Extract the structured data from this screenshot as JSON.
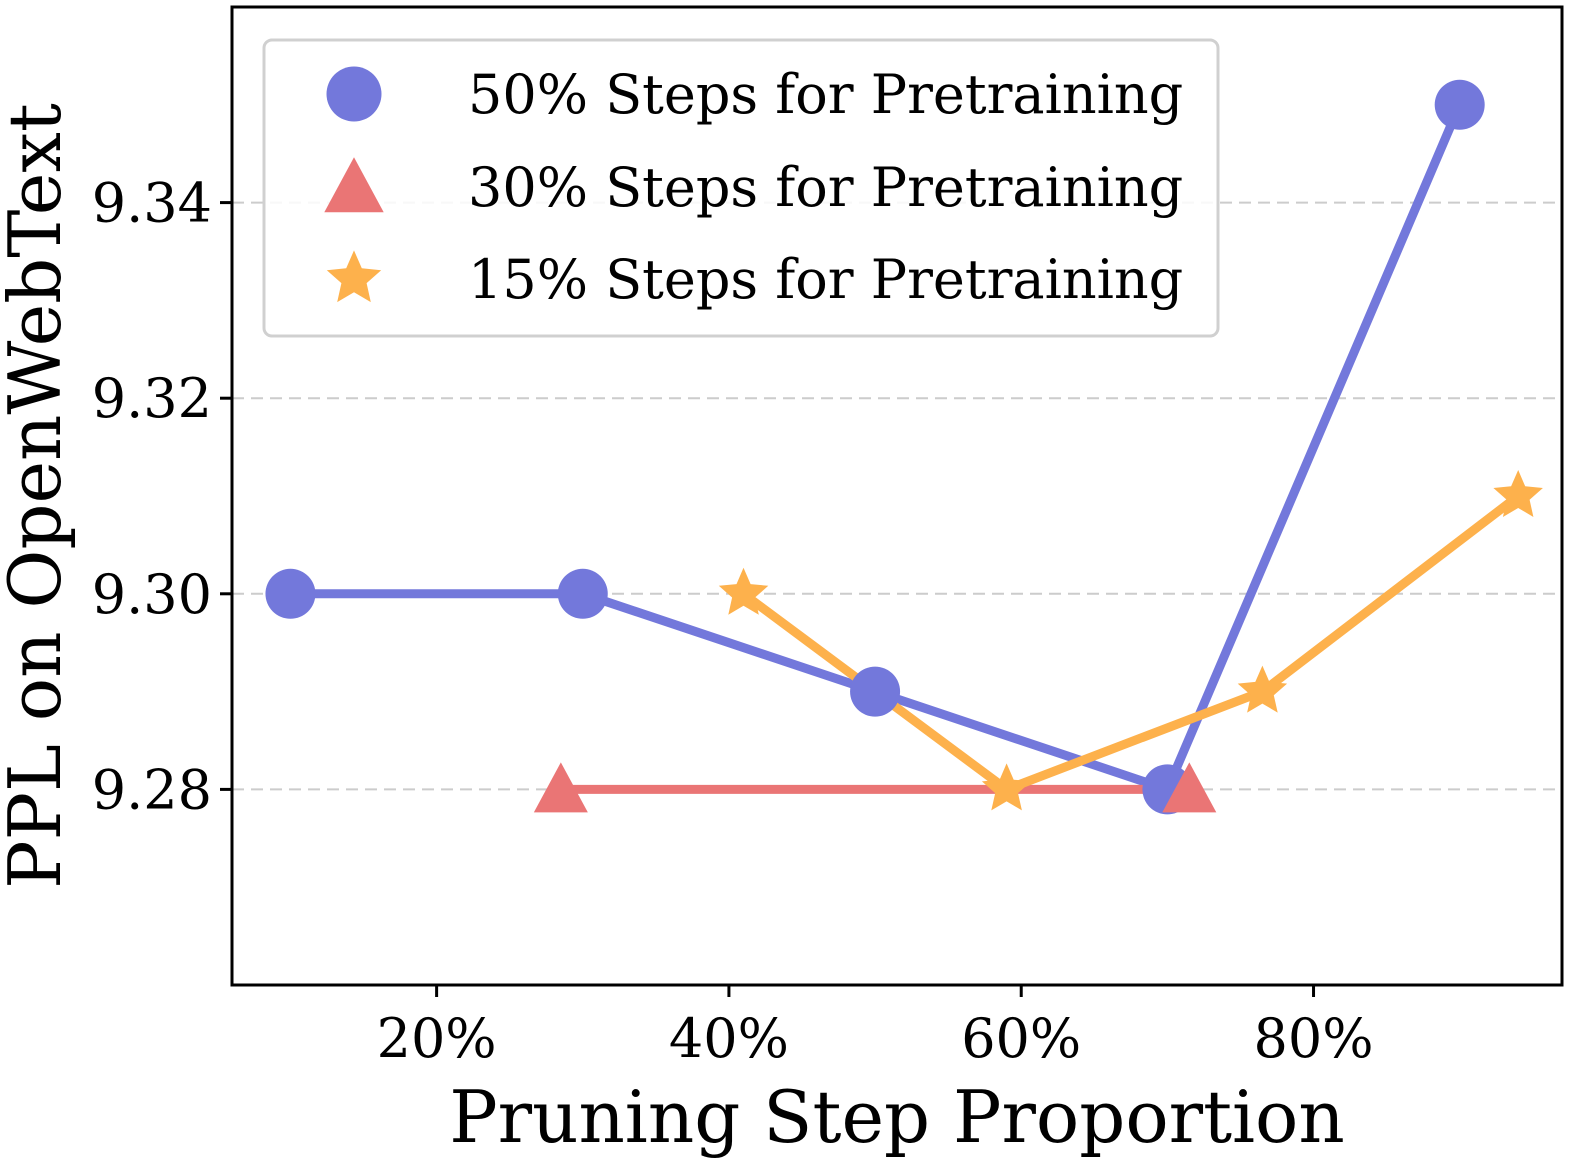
{
  "chart_data": {
    "type": "line",
    "title": "",
    "xlabel": "Pruning Step Proportion",
    "ylabel": "PPL on OpenWebText",
    "xlim": [
      6,
      97
    ],
    "ylim": [
      9.26,
      9.36
    ],
    "xticks": [
      20,
      40,
      60,
      80
    ],
    "xtick_labels": [
      "20%",
      "40%",
      "60%",
      "80%"
    ],
    "yticks": [
      9.28,
      9.3,
      9.32,
      9.34
    ],
    "ytick_labels": [
      "9.28",
      "9.30",
      "9.32",
      "9.34"
    ],
    "grid": "horizontal dashed",
    "legend_position": "top-left",
    "series": [
      {
        "name": "50% Steps for Pretraining",
        "color": "#7378db",
        "marker": "circle",
        "x": [
          10,
          30,
          50,
          70,
          90
        ],
        "y": [
          9.3,
          9.3,
          9.29,
          9.28,
          9.35
        ]
      },
      {
        "name": "30% Steps for Pretraining",
        "color": "#ea7575",
        "marker": "triangle",
        "x": [
          28.5,
          71.5
        ],
        "y": [
          9.28,
          9.28
        ]
      },
      {
        "name": "15% Steps for Pretraining",
        "color": "#fdb14c",
        "marker": "star",
        "x": [
          41,
          59,
          76.5,
          94
        ],
        "y": [
          9.3,
          9.28,
          9.29,
          9.31
        ]
      }
    ]
  }
}
